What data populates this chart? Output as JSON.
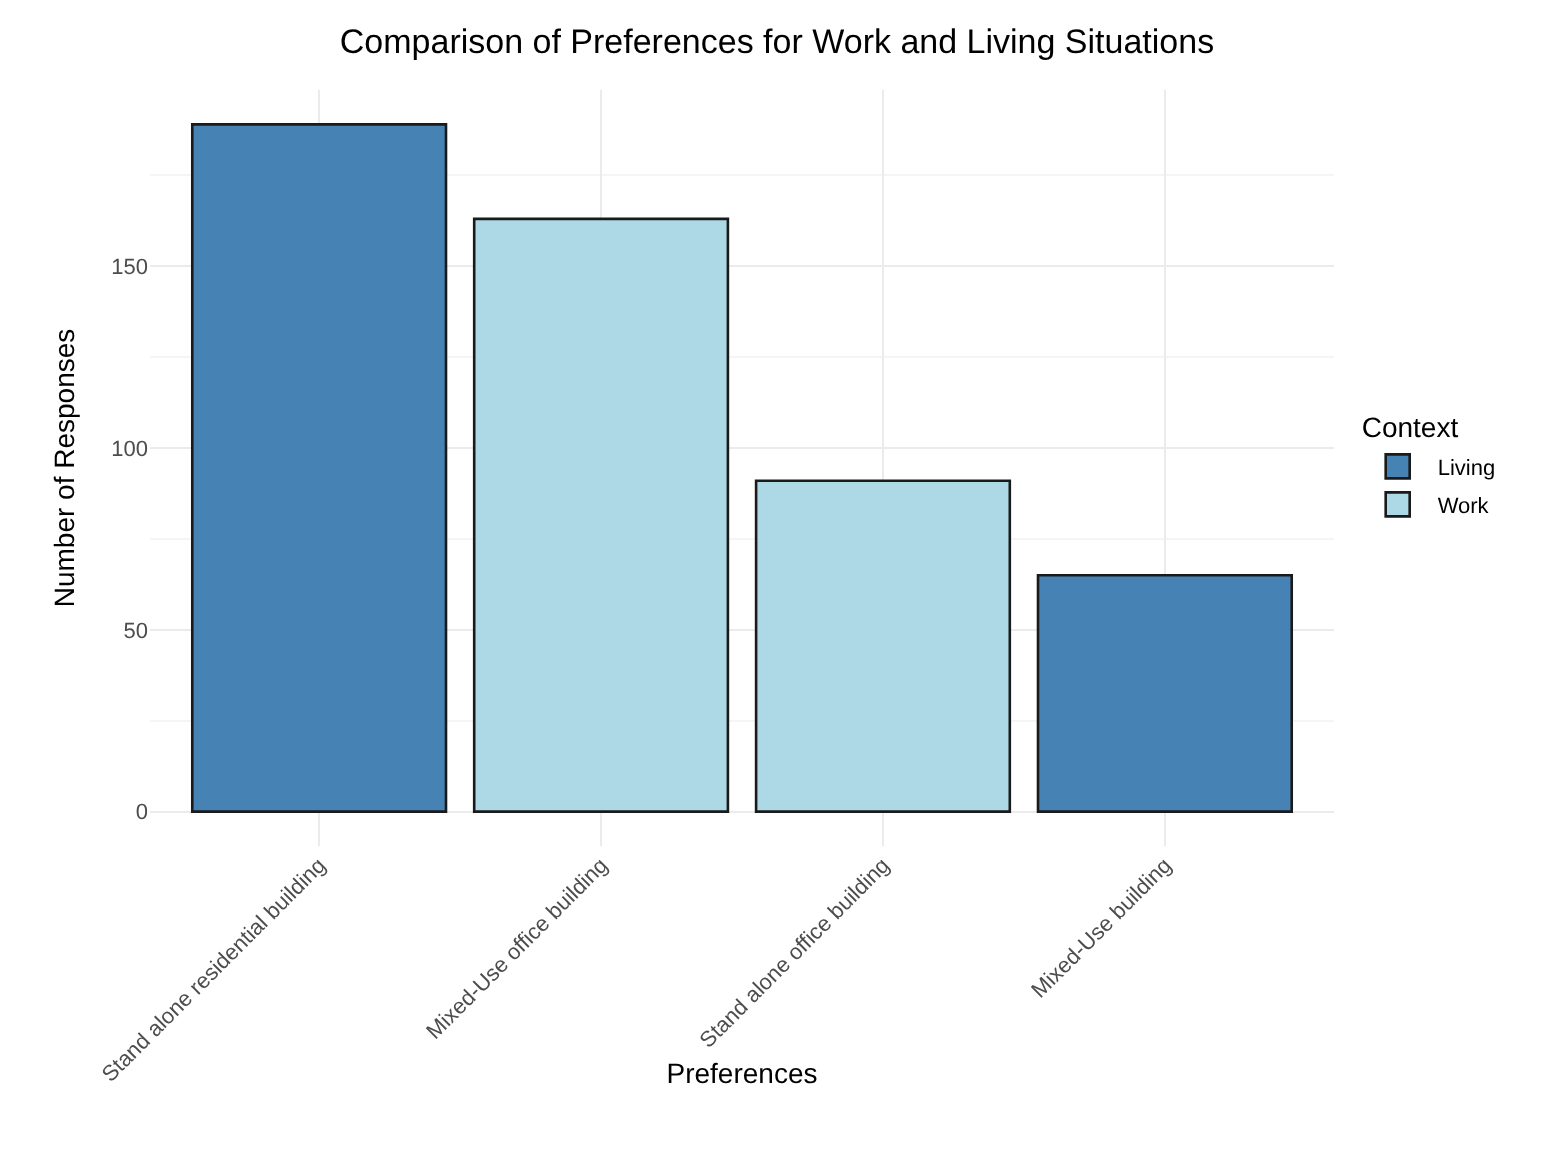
{
  "chart_data": {
    "type": "bar",
    "title": "Comparison of Preferences for Work and Living Situations",
    "xlabel": "Preferences",
    "ylabel": "Number of Responses",
    "legend_title": "Context",
    "categories": [
      "Stand alone residential building",
      "Mixed-Use office building",
      "Stand alone office building",
      "Mixed-Use building"
    ],
    "series": [
      {
        "name": "Living",
        "color": "#4682b4",
        "values": [
          189,
          null,
          null,
          65
        ]
      },
      {
        "name": "Work",
        "color": "#add8e6",
        "values": [
          null,
          163,
          91,
          null
        ]
      }
    ],
    "ylim": [
      -9.45,
      198.45
    ],
    "yticks": [
      0,
      50,
      100,
      150
    ],
    "grid": true,
    "legend": "right"
  }
}
